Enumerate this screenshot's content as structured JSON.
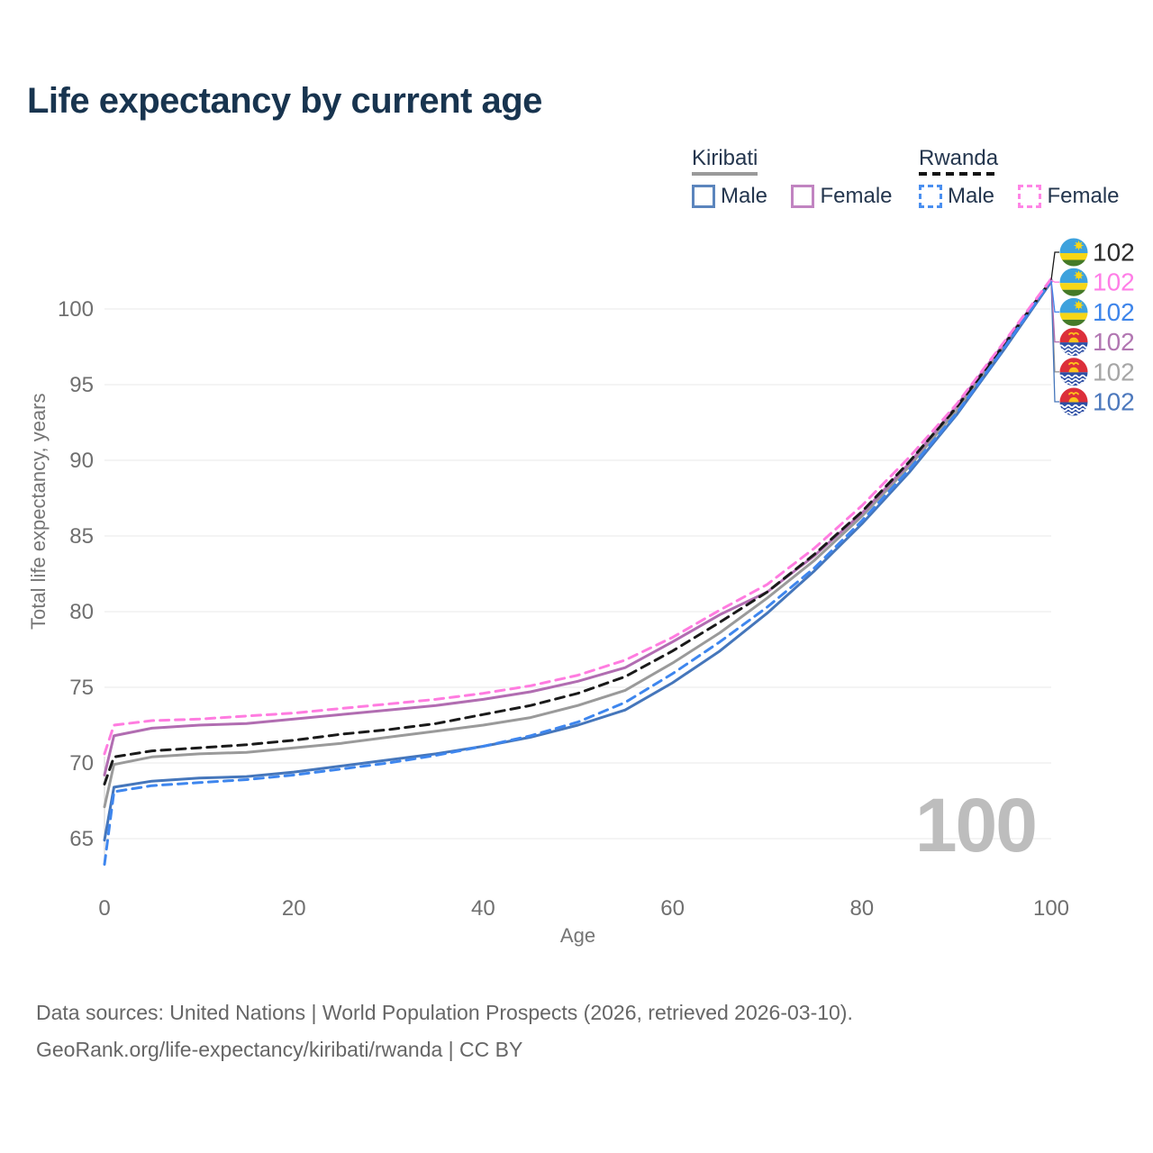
{
  "title": "Life expectancy by current age",
  "watermark": "100",
  "legend": {
    "groups": [
      {
        "country": "Kiribati",
        "underline": "solid",
        "underline_color": "#9a9a9a",
        "items": [
          {
            "label": "Male",
            "color": "#5b85bd",
            "dashed": false
          },
          {
            "label": "Female",
            "color": "#c184c1",
            "dashed": false
          }
        ]
      },
      {
        "country": "Rwanda",
        "underline": "dashed",
        "underline_color": "#1a1a1a",
        "items": [
          {
            "label": "Male",
            "color": "#4a8ff0",
            "dashed": true
          },
          {
            "label": "Female",
            "color": "#ff85e6",
            "dashed": true
          }
        ]
      }
    ]
  },
  "footer": {
    "line1": "Data sources: United Nations | World Population Prospects (2026, retrieved 2026-03-10).",
    "line2": "GeoRank.org/life-expectancy/kiribati/rwanda | CC BY"
  },
  "chart_data": {
    "type": "line",
    "title": "Life expectancy by current age",
    "xlabel": "Age",
    "ylabel": "Total life expectancy, years",
    "x_ticks": [
      0,
      20,
      40,
      60,
      80,
      100
    ],
    "y_ticks": [
      65,
      70,
      75,
      80,
      85,
      90,
      95,
      100
    ],
    "xlim": [
      0,
      100
    ],
    "ylim": [
      63,
      103
    ],
    "grid": "horizontal",
    "legend_position": "top-right",
    "x": [
      0,
      1,
      5,
      10,
      15,
      20,
      25,
      30,
      35,
      40,
      45,
      50,
      55,
      60,
      65,
      70,
      75,
      80,
      85,
      90,
      95,
      100
    ],
    "series": [
      {
        "id": "kiribati-total",
        "country": "Kiribati",
        "sex": "Both",
        "color": "#9a9a9a",
        "dashed": false,
        "flag": "kiribati",
        "label_row": 4,
        "label_color": "#a6a6a6",
        "end_label": "102",
        "values": [
          67.1,
          69.9,
          70.4,
          70.6,
          70.7,
          71.0,
          71.3,
          71.7,
          72.1,
          72.5,
          73.0,
          73.8,
          74.8,
          76.6,
          78.6,
          80.9,
          83.4,
          86.3,
          89.6,
          93.3,
          97.5,
          101.8
        ]
      },
      {
        "id": "kiribati-male",
        "country": "Kiribati",
        "sex": "Male",
        "color": "#4576bb",
        "dashed": false,
        "flag": "kiribati",
        "label_row": 5,
        "label_color": "#4d79bd",
        "end_label": "102",
        "values": [
          64.9,
          68.4,
          68.8,
          69.0,
          69.1,
          69.4,
          69.8,
          70.2,
          70.6,
          71.1,
          71.7,
          72.5,
          73.5,
          75.3,
          77.4,
          79.9,
          82.7,
          85.8,
          89.2,
          93.0,
          97.3,
          101.8
        ]
      },
      {
        "id": "kiribati-female",
        "country": "Kiribati",
        "sex": "Female",
        "color": "#b16db1",
        "dashed": false,
        "flag": "kiribati",
        "label_row": 3,
        "label_color": "#b277b2",
        "end_label": "102",
        "values": [
          69.2,
          71.8,
          72.3,
          72.5,
          72.6,
          72.9,
          73.2,
          73.5,
          73.8,
          74.2,
          74.7,
          75.4,
          76.3,
          78.0,
          79.8,
          81.3,
          83.7,
          86.5,
          89.8,
          93.6,
          97.7,
          101.9
        ]
      },
      {
        "id": "rwanda-total",
        "country": "Rwanda",
        "sex": "Both",
        "color": "#1a1a1a",
        "dashed": true,
        "flag": "rwanda",
        "label_row": 0,
        "label_color": "#2b2b2b",
        "end_label": "102",
        "values": [
          68.6,
          70.4,
          70.8,
          71.0,
          71.2,
          71.5,
          71.9,
          72.2,
          72.6,
          73.2,
          73.8,
          74.6,
          75.7,
          77.4,
          79.3,
          81.3,
          83.8,
          86.6,
          89.9,
          93.5,
          97.6,
          101.9
        ]
      },
      {
        "id": "rwanda-male",
        "country": "Rwanda",
        "sex": "Male",
        "color": "#3e86ee",
        "dashed": true,
        "flag": "rwanda",
        "label_row": 2,
        "label_color": "#3e85ea",
        "end_label": "102",
        "values": [
          63.3,
          68.1,
          68.5,
          68.7,
          68.9,
          69.2,
          69.6,
          70.0,
          70.5,
          71.1,
          71.8,
          72.7,
          74.0,
          75.9,
          78.0,
          80.3,
          82.9,
          86.0,
          89.4,
          93.1,
          97.4,
          101.9
        ]
      },
      {
        "id": "rwanda-female",
        "country": "Rwanda",
        "sex": "Female",
        "color": "#ff7ce0",
        "dashed": true,
        "flag": "rwanda",
        "label_row": 1,
        "label_color": "#ff7ee7",
        "end_label": "102",
        "values": [
          70.6,
          72.5,
          72.8,
          72.9,
          73.1,
          73.3,
          73.6,
          73.9,
          74.2,
          74.6,
          75.1,
          75.8,
          76.8,
          78.3,
          80.1,
          81.8,
          84.2,
          87.0,
          90.2,
          93.7,
          97.8,
          102.0
        ]
      }
    ]
  }
}
